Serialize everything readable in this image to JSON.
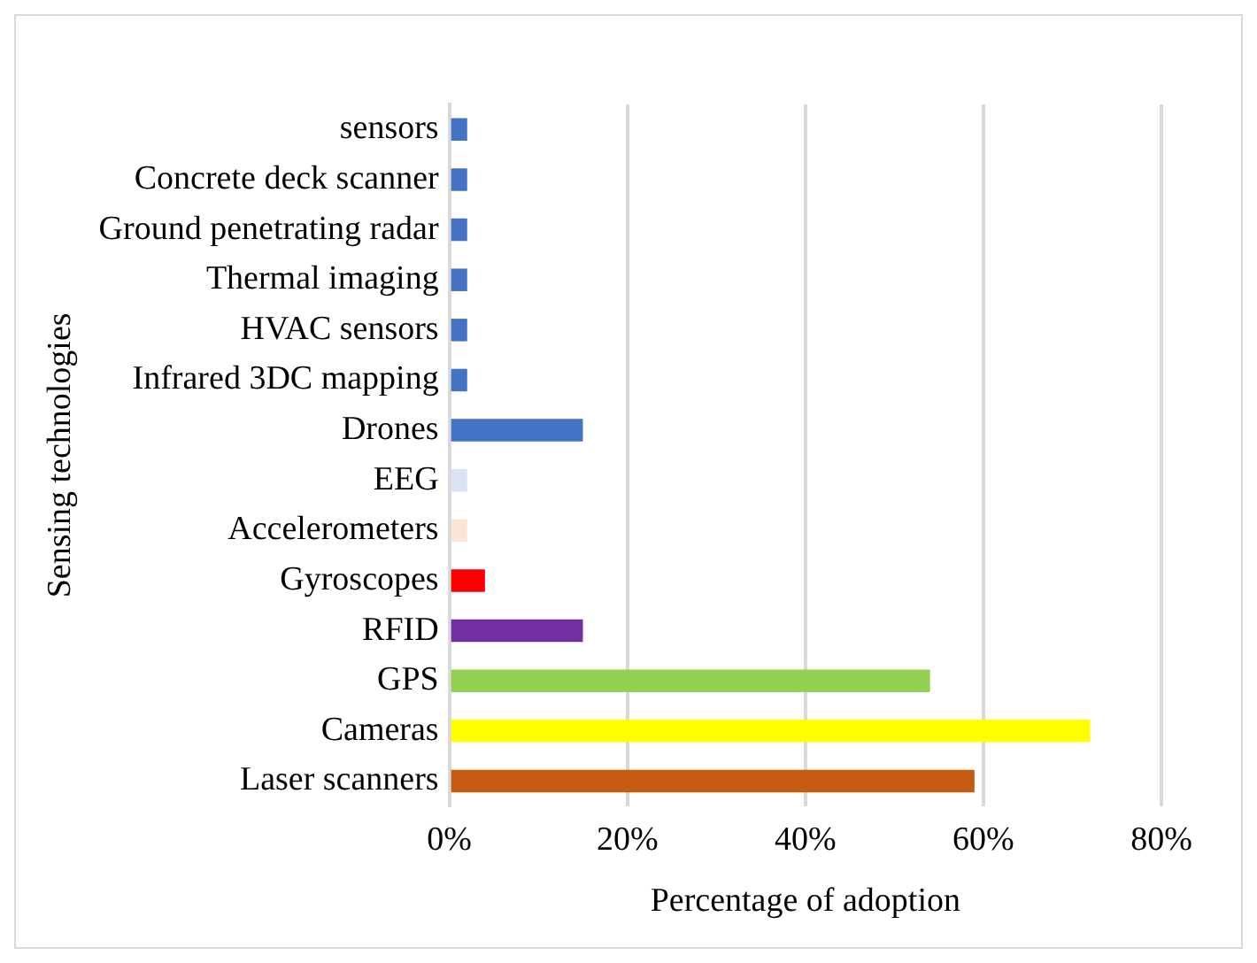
{
  "chart_data": {
    "type": "bar",
    "orientation": "horizontal",
    "xlabel": "Percentage of adoption",
    "ylabel": "Sensing technologies",
    "categories": [
      "sensors",
      "Concrete deck scanner",
      "Ground penetrating radar",
      "Thermal imaging",
      "HVAC sensors",
      "Infrared 3DC mapping",
      "Drones",
      "EEG",
      "Accelerometers",
      "Gyroscopes",
      "RFID",
      "GPS",
      "Cameras",
      "Laser scanners"
    ],
    "values": [
      2,
      2,
      2,
      2,
      2,
      2,
      15,
      2,
      2,
      4,
      15,
      54,
      72,
      59
    ],
    "colors": [
      "#4472c4",
      "#4472c4",
      "#4472c4",
      "#4472c4",
      "#4472c4",
      "#4472c4",
      "#4472c4",
      "#dae3f3",
      "#fbe5d6",
      "#ff0000",
      "#7030a0",
      "#92d050",
      "#ffff00",
      "#c55a11"
    ],
    "xlim": [
      0,
      80
    ],
    "xticks": [
      {
        "value": 0,
        "label": "0%"
      },
      {
        "value": 20,
        "label": "20%"
      },
      {
        "value": 40,
        "label": "40%"
      },
      {
        "value": 60,
        "label": "60%"
      },
      {
        "value": 80,
        "label": "80%"
      }
    ],
    "grid": "x"
  }
}
